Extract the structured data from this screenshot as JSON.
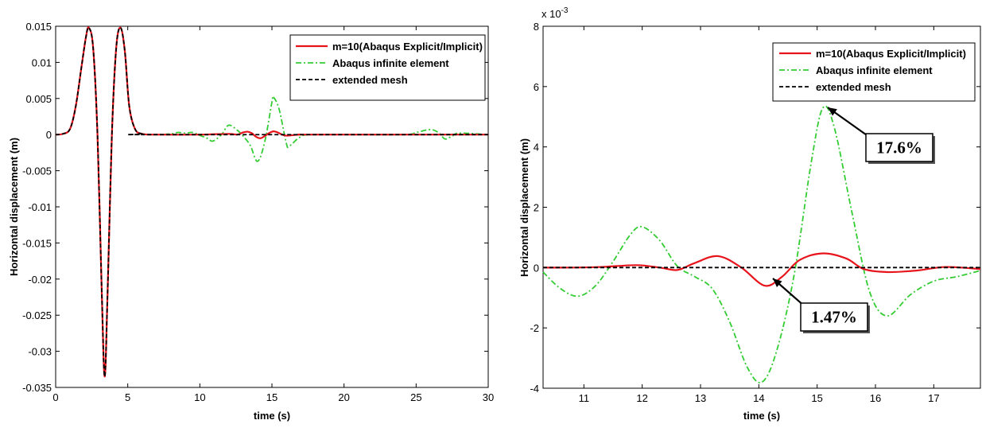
{
  "chart_data": [
    {
      "type": "line",
      "xlabel": "time (s)",
      "ylabel": "Horizontal displacement (m)",
      "xlim": [
        0,
        30
      ],
      "ylim": [
        -0.035,
        0.015
      ],
      "xticks": [
        0,
        5,
        10,
        15,
        20,
        25,
        30
      ],
      "xtick_labels": [
        "0",
        "5",
        "10",
        "15",
        "20",
        "25",
        "30"
      ],
      "yticks": [
        0.015,
        0.01,
        0.005,
        0,
        -0.005,
        -0.01,
        -0.015,
        -0.02,
        -0.025,
        -0.03,
        -0.035
      ],
      "ytick_labels": [
        "0.015",
        "0.01",
        "0.005",
        "0",
        "-0.005",
        "-0.01",
        "-0.015",
        "-0.02",
        "-0.025",
        "-0.03",
        "-0.035"
      ],
      "grid": false,
      "legend_position": "top-right",
      "series": [
        {
          "name": "m=10(Abaqus Explicit/Implicit)",
          "color": "#e8141c",
          "style": "solid",
          "x": [
            0,
            0.5,
            1,
            1.4,
            1.8,
            2.1,
            2.3,
            2.6,
            2.9,
            3.2,
            3.4,
            3.6,
            3.9,
            4.2,
            4.5,
            4.8,
            5.1,
            5.5,
            6,
            7,
            10,
            12,
            12.6,
            13,
            13.3,
            13.6,
            13.9,
            14.2,
            14.5,
            14.8,
            15.1,
            15.4,
            15.7,
            16,
            16.3,
            17,
            18,
            30
          ],
          "y": [
            0,
            0.0001,
            0.0008,
            0.004,
            0.0095,
            0.0135,
            0.0148,
            0.012,
            0.0,
            -0.022,
            -0.0335,
            -0.022,
            0.0,
            0.012,
            0.0148,
            0.0115,
            0.004,
            0.0008,
            0.0001,
            0,
            0,
            0.0001,
            0,
            0.0003,
            0.0004,
            0.0002,
            -0.0003,
            -0.0005,
            -0.0002,
            0.0002,
            0.00045,
            0.0003,
            0.0,
            -0.00015,
            -0.0001,
            0,
            0,
            0
          ]
        },
        {
          "name": "Abaqus infinite element",
          "color": "#33cc33",
          "style": "dashdot",
          "x": [
            0,
            0.5,
            1,
            1.4,
            1.8,
            2.1,
            2.3,
            2.6,
            2.9,
            3.2,
            3.4,
            3.6,
            3.9,
            4.2,
            4.5,
            4.8,
            5.1,
            5.5,
            6,
            7,
            8,
            8.5,
            9,
            9.5,
            10,
            10.5,
            10.9,
            11.5,
            12,
            12.6,
            13,
            13.5,
            14,
            14.5,
            15,
            15.1,
            15.5,
            16,
            16.2,
            17,
            18,
            24,
            25,
            26,
            26.6,
            27,
            27.5,
            28,
            30
          ],
          "y": [
            0,
            0.0001,
            0.0008,
            0.004,
            0.0095,
            0.0135,
            0.0148,
            0.012,
            0.0,
            -0.022,
            -0.0335,
            -0.022,
            0.0,
            0.012,
            0.0148,
            0.0115,
            0.004,
            0.0008,
            0.0001,
            0,
            0.0001,
            0.0003,
            0.0002,
            0.0003,
            -0.0001,
            -0.0005,
            -0.0009,
            0.0,
            0.0013,
            0.0006,
            -0.0002,
            -0.0015,
            -0.0037,
            -0.001,
            0.0045,
            0.0052,
            0.0035,
            -0.0012,
            -0.0016,
            -0.0003,
            0,
            0,
            0.0003,
            0.0007,
            0.0002,
            -0.0006,
            -0.0002,
            0.0002,
            0
          ]
        },
        {
          "name": "extended mesh",
          "color": "#000000",
          "style": "dashed",
          "x": [
            0,
            0.5,
            1,
            1.4,
            1.8,
            2.1,
            2.3,
            2.6,
            2.9,
            3.2,
            3.4,
            3.6,
            3.9,
            4.2,
            4.5,
            4.8,
            5.1,
            5.5,
            6,
            7,
            30
          ],
          "y": [
            0,
            0.0001,
            0.0008,
            0.004,
            0.0095,
            0.0135,
            0.0148,
            0.012,
            0.0,
            -0.022,
            -0.0335,
            -0.022,
            0.0,
            0.012,
            0.0148,
            0.0115,
            0.004,
            0.0008,
            0.0001,
            0,
            0
          ]
        }
      ]
    },
    {
      "type": "line",
      "xlabel": "time (s)",
      "ylabel": "Horizontal displacement (m)",
      "y_multiplier_label": "x 10",
      "y_multiplier_exponent": "-3",
      "xlim": [
        10.3,
        17.8
      ],
      "ylim": [
        -4,
        8
      ],
      "xticks": [
        11,
        12,
        13,
        14,
        15,
        16,
        17
      ],
      "xtick_labels": [
        "11",
        "12",
        "13",
        "14",
        "15",
        "16",
        "17"
      ],
      "yticks": [
        8,
        6,
        4,
        2,
        0,
        -2,
        -4
      ],
      "ytick_labels": [
        "8",
        "6",
        "4",
        "2",
        "0",
        "-2",
        "-4"
      ],
      "grid": false,
      "legend_position": "top-right",
      "annotations": [
        {
          "text": "17.6%",
          "x": 15.1,
          "y": 5.3
        },
        {
          "text": "1.47%",
          "x": 14.1,
          "y": -0.6
        }
      ],
      "series": [
        {
          "name": "m=10(Abaqus Explicit/Implicit)",
          "color": "#e8141c",
          "style": "solid",
          "x": [
            10.3,
            10.8,
            11.3,
            11.9,
            12.3,
            12.6,
            12.9,
            13.3,
            13.7,
            14.1,
            14.4,
            14.7,
            15.1,
            15.5,
            15.8,
            16.2,
            16.7,
            17.2,
            17.8
          ],
          "y": [
            0,
            0,
            0.02,
            0.08,
            0,
            -0.08,
            0.15,
            0.38,
            0.0,
            -0.6,
            -0.3,
            0.25,
            0.47,
            0.3,
            -0.05,
            -0.15,
            -0.1,
            0.02,
            -0.05
          ]
        },
        {
          "name": "Abaqus infinite element",
          "color": "#33cc33",
          "style": "dashdot",
          "x": [
            10.3,
            10.6,
            10.9,
            11.2,
            11.5,
            11.8,
            12.0,
            12.3,
            12.6,
            12.9,
            13.2,
            13.5,
            13.8,
            14.05,
            14.3,
            14.6,
            14.9,
            15.1,
            15.3,
            15.6,
            15.9,
            16.2,
            16.6,
            17.0,
            17.4,
            17.8
          ],
          "y": [
            -0.15,
            -0.7,
            -0.95,
            -0.6,
            0.2,
            1.1,
            1.35,
            0.9,
            0.05,
            -0.3,
            -0.7,
            -1.8,
            -3.3,
            -3.8,
            -2.8,
            -0.3,
            3.5,
            5.3,
            4.6,
            1.8,
            -0.8,
            -1.6,
            -0.9,
            -0.45,
            -0.3,
            -0.1
          ]
        },
        {
          "name": "extended mesh",
          "color": "#000000",
          "style": "dashed",
          "x": [
            10.3,
            17.8
          ],
          "y": [
            0,
            0
          ]
        }
      ]
    }
  ]
}
